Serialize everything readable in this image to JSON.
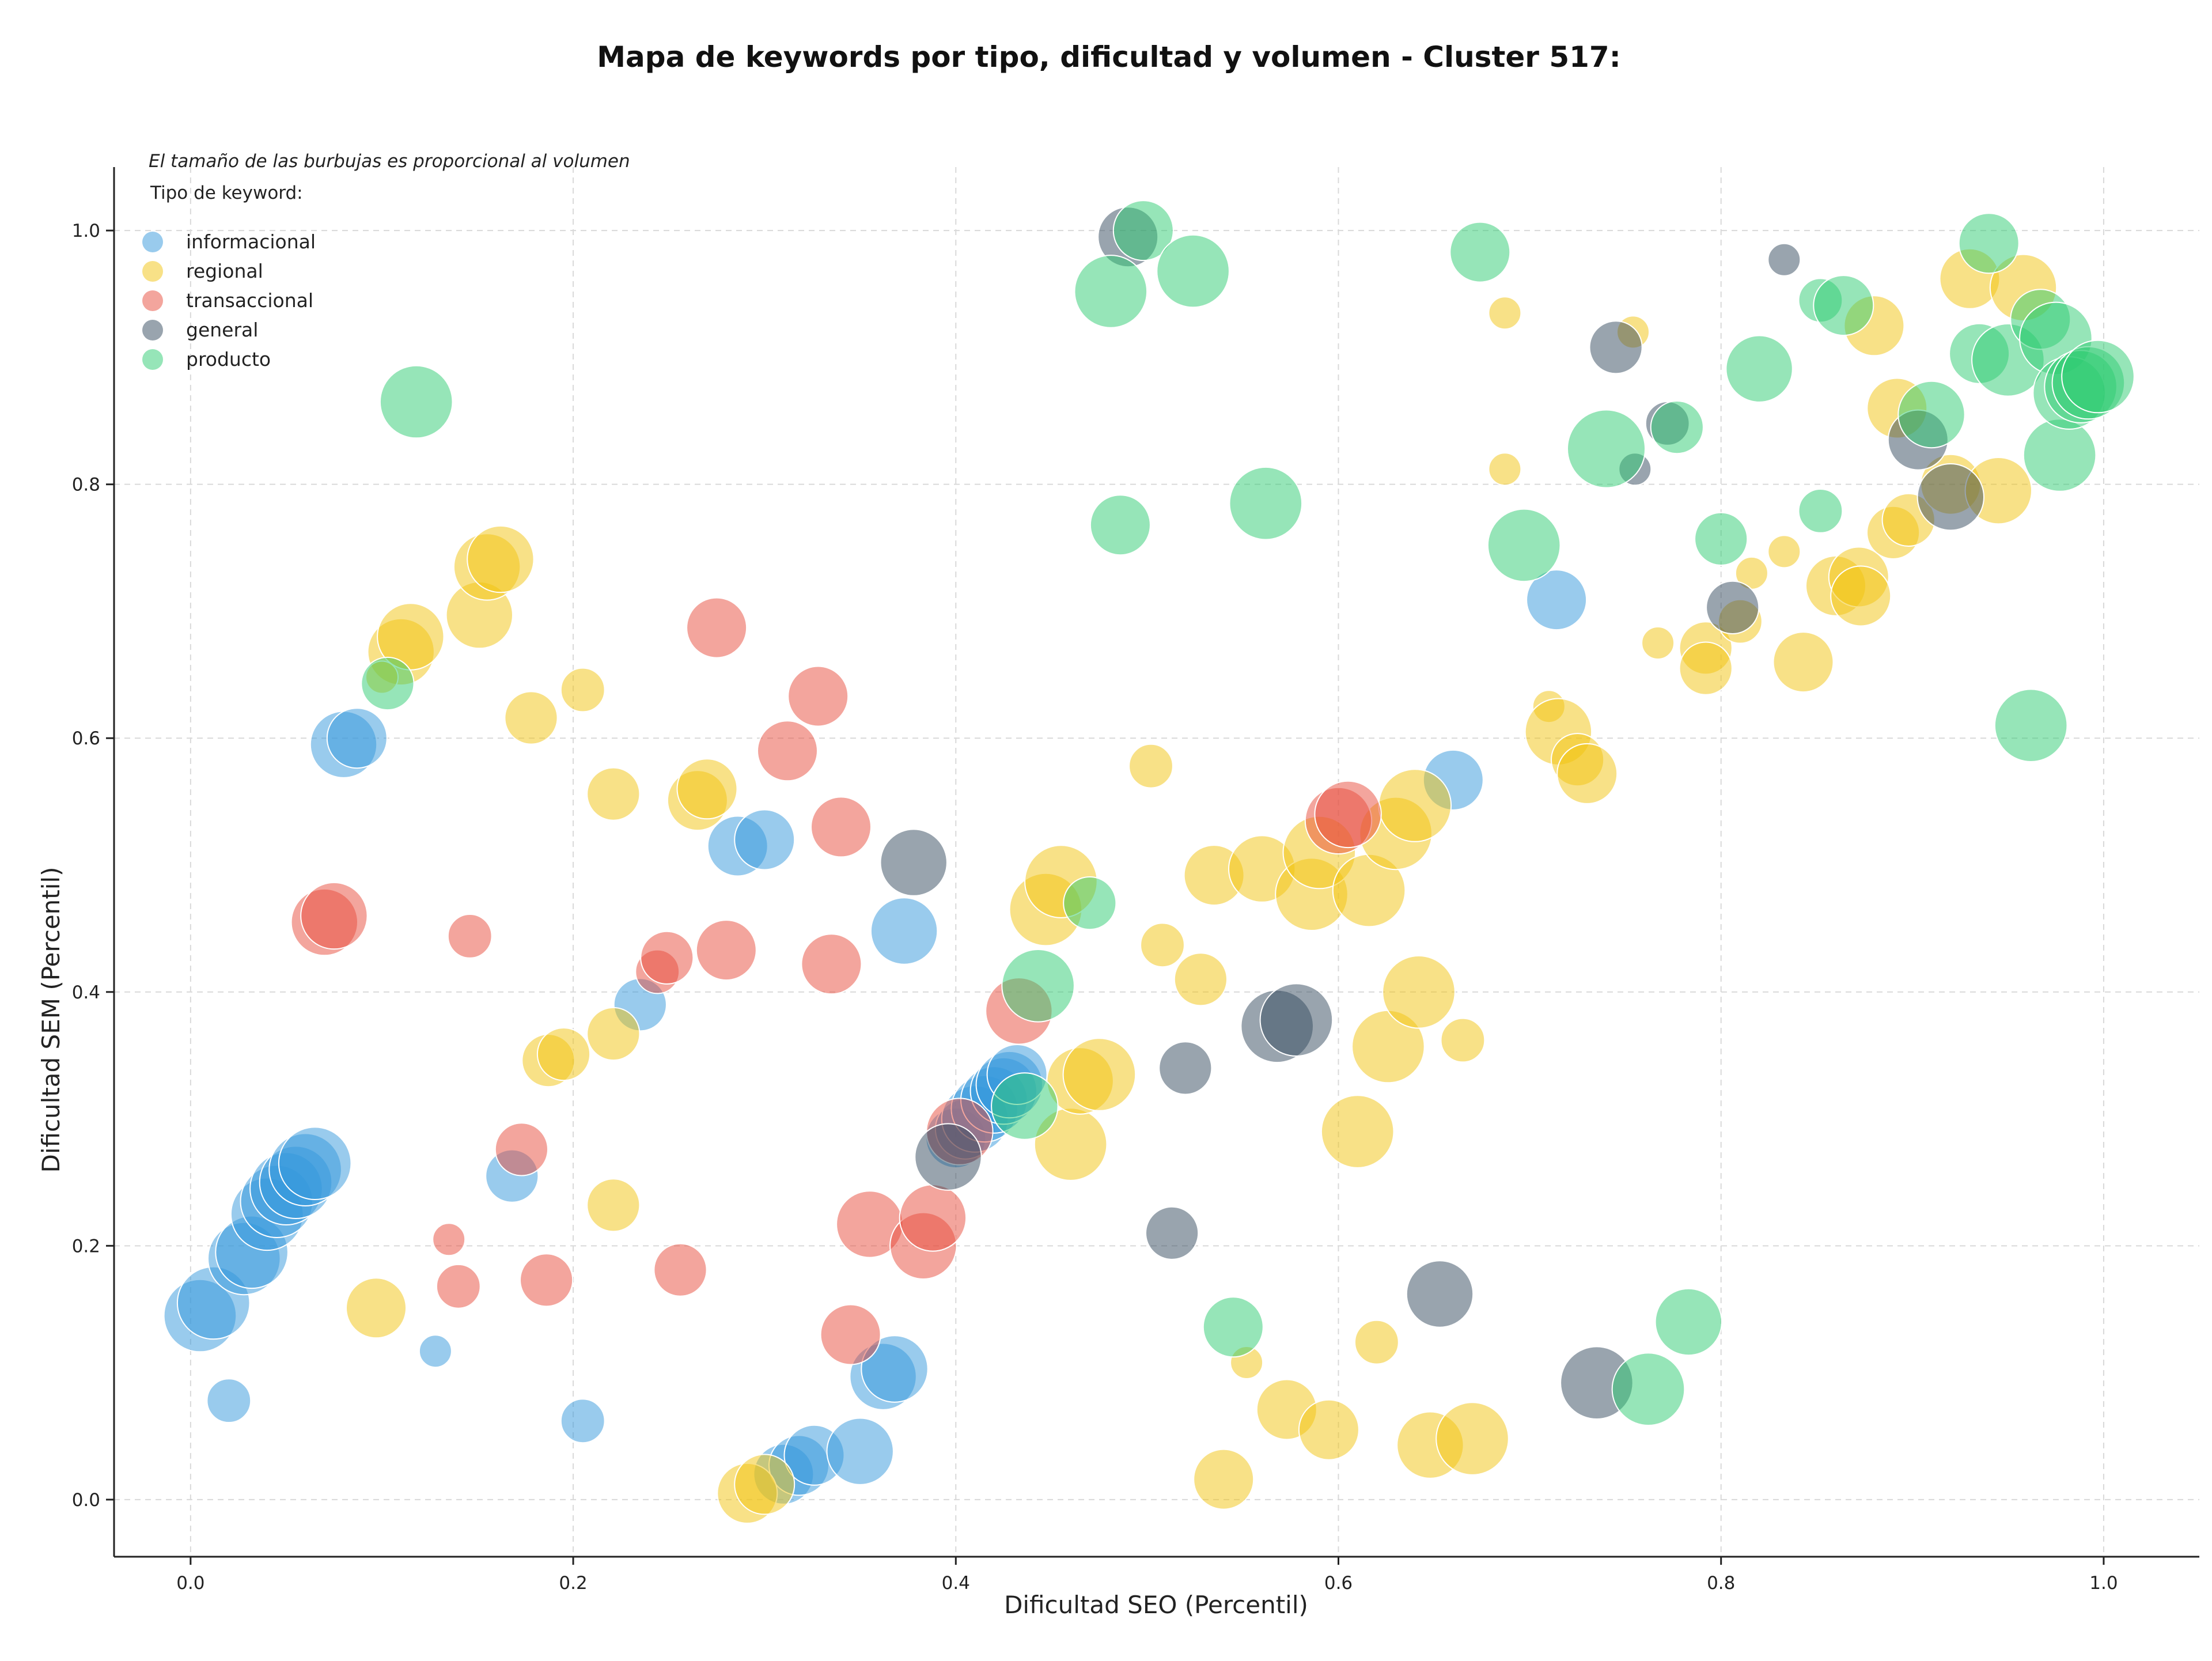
{
  "chart_data": {
    "type": "scatter",
    "title": "Mapa de keywords por tipo, dificultad y volumen - Cluster 517:",
    "xlabel": "Dificultad SEO (Percentil)",
    "ylabel": "Dificultad SEM (Percentil)",
    "xlim": [
      -0.04,
      1.05
    ],
    "ylim": [
      -0.045,
      1.05
    ],
    "xticks": [
      "0.0",
      "0.2",
      "0.4",
      "0.6",
      "0.8",
      "1.0"
    ],
    "yticks": [
      "0.0",
      "0.2",
      "0.4",
      "0.6",
      "0.8",
      "1.0"
    ],
    "grid": true,
    "note": "El tamaño de las burbujas es proporcional al volumen",
    "legend_title": "Tipo de keyword:",
    "legend_position": "top-left",
    "size_range": [
      1,
      10
    ],
    "series": [
      {
        "name": "informacional",
        "color": "#3498db",
        "points": [
          [
            0.005,
            0.145,
            6
          ],
          [
            0.012,
            0.155,
            6
          ],
          [
            0.02,
            0.078,
            2
          ],
          [
            0.028,
            0.19,
            6
          ],
          [
            0.032,
            0.195,
            6
          ],
          [
            0.04,
            0.225,
            6
          ],
          [
            0.045,
            0.235,
            6
          ],
          [
            0.05,
            0.245,
            6
          ],
          [
            0.055,
            0.25,
            6
          ],
          [
            0.06,
            0.26,
            6
          ],
          [
            0.065,
            0.265,
            6
          ],
          [
            0.08,
            0.595,
            5
          ],
          [
            0.087,
            0.6,
            4
          ],
          [
            0.128,
            0.117,
            1
          ],
          [
            0.168,
            0.255,
            3
          ],
          [
            0.205,
            0.062,
            2
          ],
          [
            0.235,
            0.39,
            3
          ],
          [
            0.286,
            0.515,
            4
          ],
          [
            0.3,
            0.52,
            4
          ],
          [
            0.31,
            0.02,
            4
          ],
          [
            0.318,
            0.027,
            4
          ],
          [
            0.326,
            0.035,
            4
          ],
          [
            0.35,
            0.038,
            5
          ],
          [
            0.362,
            0.097,
            5
          ],
          [
            0.368,
            0.103,
            5
          ],
          [
            0.373,
            0.448,
            5
          ],
          [
            0.4,
            0.285,
            4
          ],
          [
            0.405,
            0.292,
            4
          ],
          [
            0.41,
            0.3,
            5
          ],
          [
            0.415,
            0.308,
            5
          ],
          [
            0.42,
            0.315,
            5
          ],
          [
            0.425,
            0.322,
            5
          ],
          [
            0.428,
            0.327,
            5
          ],
          [
            0.432,
            0.335,
            4
          ],
          [
            0.66,
            0.567,
            4
          ],
          [
            0.714,
            0.709,
            4
          ]
        ]
      },
      {
        "name": "regional",
        "color": "#f1c40f",
        "points": [
          [
            0.097,
            0.151,
            4
          ],
          [
            0.11,
            0.668,
            5
          ],
          [
            0.115,
            0.68,
            5
          ],
          [
            0.1,
            0.648,
            1
          ],
          [
            0.151,
            0.697,
            5
          ],
          [
            0.155,
            0.735,
            5
          ],
          [
            0.162,
            0.741,
            5
          ],
          [
            0.178,
            0.616,
            3
          ],
          [
            0.187,
            0.346,
            3
          ],
          [
            0.195,
            0.351,
            3
          ],
          [
            0.205,
            0.638,
            2
          ],
          [
            0.221,
            0.556,
            3
          ],
          [
            0.221,
            0.367,
            3
          ],
          [
            0.221,
            0.232,
            3
          ],
          [
            0.265,
            0.551,
            4
          ],
          [
            0.27,
            0.56,
            4
          ],
          [
            0.291,
            0.005,
            4
          ],
          [
            0.3,
            0.012,
            4
          ],
          [
            0.447,
            0.465,
            6
          ],
          [
            0.455,
            0.487,
            6
          ],
          [
            0.46,
            0.28,
            6
          ],
          [
            0.465,
            0.33,
            5
          ],
          [
            0.475,
            0.335,
            6
          ],
          [
            0.502,
            0.578,
            2
          ],
          [
            0.508,
            0.437,
            2
          ],
          [
            0.528,
            0.41,
            3
          ],
          [
            0.535,
            0.492,
            4
          ],
          [
            0.54,
            0.016,
            4
          ],
          [
            0.56,
            0.497,
            5
          ],
          [
            0.552,
            0.108,
            1
          ],
          [
            0.573,
            0.071,
            4
          ],
          [
            0.586,
            0.477,
            6
          ],
          [
            0.59,
            0.51,
            6
          ],
          [
            0.595,
            0.055,
            4
          ],
          [
            0.61,
            0.29,
            6
          ],
          [
            0.616,
            0.48,
            6
          ],
          [
            0.62,
            0.124,
            2
          ],
          [
            0.626,
            0.357,
            6
          ],
          [
            0.63,
            0.525,
            6
          ],
          [
            0.64,
            0.547,
            6
          ],
          [
            0.642,
            0.4,
            6
          ],
          [
            0.648,
            0.043,
            5
          ],
          [
            0.665,
            0.362,
            2
          ],
          [
            0.67,
            0.048,
            6
          ],
          [
            0.687,
            0.935,
            1
          ],
          [
            0.687,
            0.812,
            1
          ],
          [
            0.71,
            0.625,
            1
          ],
          [
            0.715,
            0.605,
            5
          ],
          [
            0.725,
            0.583,
            3
          ],
          [
            0.73,
            0.572,
            4
          ],
          [
            0.754,
            0.92,
            1
          ],
          [
            0.767,
            0.675,
            1
          ],
          [
            0.792,
            0.671,
            3
          ],
          [
            0.792,
            0.655,
            3
          ],
          [
            0.81,
            0.692,
            2
          ],
          [
            0.816,
            0.73,
            1
          ],
          [
            0.833,
            0.747,
            1
          ],
          [
            0.843,
            0.66,
            4
          ],
          [
            0.86,
            0.72,
            4
          ],
          [
            0.872,
            0.727,
            4
          ],
          [
            0.873,
            0.712,
            4
          ],
          [
            0.88,
            0.925,
            4
          ],
          [
            0.89,
            0.762,
            3
          ],
          [
            0.892,
            0.86,
            4
          ],
          [
            0.898,
            0.772,
            3
          ],
          [
            0.92,
            0.8,
            4
          ],
          [
            0.93,
            0.962,
            4
          ],
          [
            0.945,
            0.795,
            5
          ],
          [
            0.958,
            0.955,
            5
          ]
        ]
      },
      {
        "name": "transaccional",
        "color": "#e74c3c",
        "points": [
          [
            0.07,
            0.455,
            5
          ],
          [
            0.075,
            0.46,
            5
          ],
          [
            0.135,
            0.205,
            1
          ],
          [
            0.14,
            0.168,
            2
          ],
          [
            0.146,
            0.444,
            2
          ],
          [
            0.173,
            0.276,
            3
          ],
          [
            0.186,
            0.173,
            3
          ],
          [
            0.244,
            0.416,
            2
          ],
          [
            0.249,
            0.427,
            3
          ],
          [
            0.256,
            0.181,
            3
          ],
          [
            0.275,
            0.687,
            4
          ],
          [
            0.28,
            0.433,
            4
          ],
          [
            0.312,
            0.59,
            4
          ],
          [
            0.328,
            0.633,
            4
          ],
          [
            0.335,
            0.422,
            4
          ],
          [
            0.34,
            0.53,
            4
          ],
          [
            0.345,
            0.13,
            4
          ],
          [
            0.355,
            0.217,
            5
          ],
          [
            0.383,
            0.2,
            5
          ],
          [
            0.388,
            0.222,
            5
          ],
          [
            0.402,
            0.29,
            5
          ],
          [
            0.433,
            0.385,
            5
          ],
          [
            0.6,
            0.535,
            5
          ],
          [
            0.605,
            0.54,
            5
          ]
        ]
      },
      {
        "name": "general",
        "color": "#34495e",
        "points": [
          [
            0.378,
            0.502,
            5
          ],
          [
            0.396,
            0.27,
            5
          ],
          [
            0.49,
            0.995,
            4
          ],
          [
            0.513,
            0.21,
            3
          ],
          [
            0.52,
            0.34,
            3
          ],
          [
            0.568,
            0.373,
            6
          ],
          [
            0.578,
            0.378,
            6
          ],
          [
            0.653,
            0.162,
            5
          ],
          [
            0.735,
            0.092,
            6
          ],
          [
            0.745,
            0.908,
            3
          ],
          [
            0.755,
            0.812,
            1
          ],
          [
            0.772,
            0.848,
            2
          ],
          [
            0.806,
            0.703,
            3
          ],
          [
            0.833,
            0.977,
            1
          ],
          [
            0.903,
            0.835,
            4
          ],
          [
            0.92,
            0.79,
            5
          ]
        ]
      },
      {
        "name": "producto",
        "color": "#2ecc71",
        "points": [
          [
            0.103,
            0.643,
            3
          ],
          [
            0.118,
            0.865,
            6
          ],
          [
            0.436,
            0.31,
            5
          ],
          [
            0.443,
            0.405,
            6
          ],
          [
            0.47,
            0.47,
            3
          ],
          [
            0.481,
            0.952,
            6
          ],
          [
            0.486,
            0.768,
            4
          ],
          [
            0.498,
            1.0,
            4
          ],
          [
            0.524,
            0.968,
            6
          ],
          [
            0.545,
            0.136,
            4
          ],
          [
            0.562,
            0.785,
            6
          ],
          [
            0.674,
            0.983,
            4
          ],
          [
            0.697,
            0.752,
            6
          ],
          [
            0.74,
            0.828,
            7
          ],
          [
            0.762,
            0.087,
            6
          ],
          [
            0.777,
            0.845,
            3
          ],
          [
            0.783,
            0.14,
            5
          ],
          [
            0.8,
            0.757,
            3
          ],
          [
            0.82,
            0.891,
            5
          ],
          [
            0.852,
            0.779,
            2
          ],
          [
            0.852,
            0.945,
            2
          ],
          [
            0.864,
            0.941,
            4
          ],
          [
            0.91,
            0.855,
            5
          ],
          [
            0.935,
            0.903,
            4
          ],
          [
            0.94,
            0.99,
            4
          ],
          [
            0.95,
            0.898,
            6
          ],
          [
            0.962,
            0.61,
            6
          ],
          [
            0.967,
            0.93,
            4
          ],
          [
            0.975,
            0.915,
            6
          ],
          [
            0.977,
            0.823,
            6
          ],
          [
            0.982,
            0.872,
            6
          ],
          [
            0.988,
            0.877,
            6
          ],
          [
            0.992,
            0.88,
            6
          ],
          [
            0.997,
            0.885,
            6
          ]
        ]
      }
    ]
  }
}
